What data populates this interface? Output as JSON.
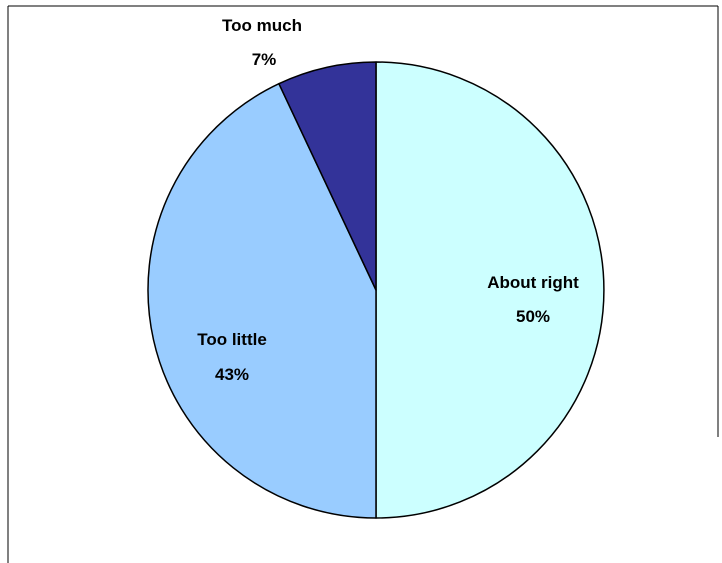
{
  "chart_data": {
    "type": "pie",
    "title": "",
    "slices": [
      {
        "label": "About right",
        "value": 50,
        "value_label": "50%",
        "color": "#ccffff"
      },
      {
        "label": "Too little",
        "value": 43,
        "value_label": "43%",
        "color": "#99ccff"
      },
      {
        "label": "Too much",
        "value": 7,
        "value_label": "7%",
        "color": "#333399"
      }
    ],
    "legend": "none",
    "start_angle_deg": 0,
    "direction": "clockwise",
    "outline_color": "#000000"
  }
}
